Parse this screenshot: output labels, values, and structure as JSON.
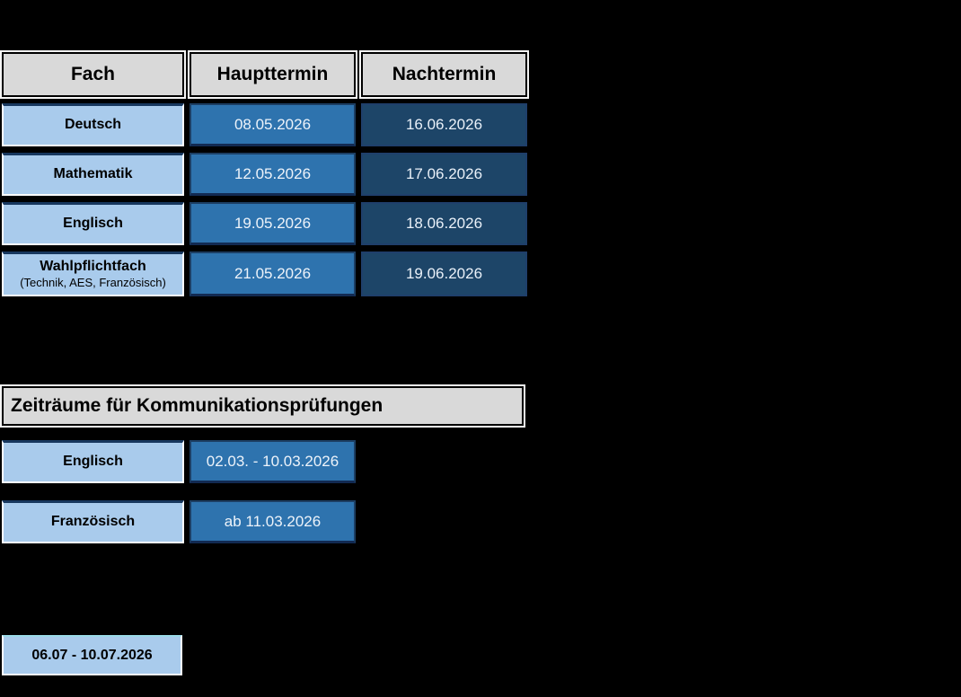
{
  "colors": {
    "background": "#000000",
    "header_bg": "#d9d9d9",
    "light_blue": "#a9cbec",
    "medium_blue": "#2e73ae",
    "dark_blue": "#1d4568",
    "border_navy": "#17375e"
  },
  "exam_table": {
    "headers": {
      "fach": "Fach",
      "haupttermin": "Haupttermin",
      "nachtermin": "Nachtermin"
    },
    "rows": [
      {
        "subject": "Deutsch",
        "subject_note": "",
        "haupttermin": "08.05.2026",
        "nachtermin": "16.06.2026"
      },
      {
        "subject": "Mathematik",
        "subject_note": "",
        "haupttermin": "12.05.2026",
        "nachtermin": "17.06.2026"
      },
      {
        "subject": "Englisch",
        "subject_note": "",
        "haupttermin": "19.05.2026",
        "nachtermin": "18.06.2026"
      },
      {
        "subject": "Wahlpflichtfach",
        "subject_note": "(Technik, AES, Französisch)",
        "haupttermin": "21.05.2026",
        "nachtermin": "19.06.2026"
      }
    ]
  },
  "kommunikation": {
    "title": "Zeiträume für Kommunikationsprüfungen",
    "rows": [
      {
        "subject": "Englisch",
        "zeitraum": "02.03. - 10.03.2026"
      },
      {
        "subject": "Französisch",
        "zeitraum": "ab 11.03.2026"
      }
    ]
  },
  "footer": {
    "label": "06.07 - 10.07.2026"
  }
}
